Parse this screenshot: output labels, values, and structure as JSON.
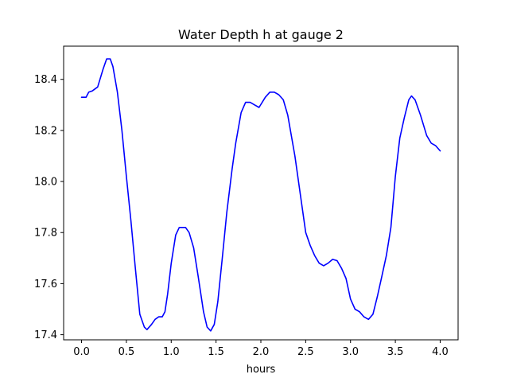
{
  "chart_data": {
    "type": "line",
    "title": "Water Depth h at gauge 2",
    "xlabel": "hours",
    "ylabel": "",
    "xlim": [
      -0.2,
      4.2
    ],
    "ylim": [
      17.38,
      18.53
    ],
    "xticks": [
      0.0,
      0.5,
      1.0,
      1.5,
      2.0,
      2.5,
      3.0,
      3.5,
      4.0
    ],
    "xtick_labels": [
      "0.0",
      "0.5",
      "1.0",
      "1.5",
      "2.0",
      "2.5",
      "3.0",
      "3.5",
      "4.0"
    ],
    "yticks": [
      17.4,
      17.6,
      17.8,
      18.0,
      18.2,
      18.4
    ],
    "ytick_labels": [
      "17.4",
      "17.6",
      "17.8",
      "18.0",
      "18.2",
      "18.4"
    ],
    "grid": false,
    "series": [
      {
        "color": "#0000ff",
        "x": [
          0.0,
          0.05,
          0.08,
          0.12,
          0.18,
          0.24,
          0.28,
          0.32,
          0.35,
          0.4,
          0.45,
          0.5,
          0.55,
          0.6,
          0.65,
          0.7,
          0.73,
          0.78,
          0.82,
          0.86,
          0.9,
          0.93,
          0.96,
          1.0,
          1.05,
          1.09,
          1.12,
          1.16,
          1.2,
          1.25,
          1.3,
          1.36,
          1.4,
          1.44,
          1.48,
          1.52,
          1.57,
          1.62,
          1.68,
          1.72,
          1.78,
          1.83,
          1.88,
          1.93,
          1.98,
          2.05,
          2.1,
          2.15,
          2.2,
          2.25,
          2.3,
          2.38,
          2.44,
          2.5,
          2.55,
          2.6,
          2.65,
          2.7,
          2.75,
          2.8,
          2.85,
          2.9,
          2.95,
          3.0,
          3.05,
          3.1,
          3.15,
          3.2,
          3.25,
          3.3,
          3.35,
          3.4,
          3.45,
          3.5,
          3.55,
          3.6,
          3.65,
          3.68,
          3.72,
          3.78,
          3.85,
          3.9,
          3.95,
          4.0
        ],
        "y": [
          18.33,
          18.33,
          18.35,
          18.355,
          18.37,
          18.44,
          18.48,
          18.48,
          18.45,
          18.35,
          18.2,
          18.02,
          17.85,
          17.66,
          17.48,
          17.43,
          17.42,
          17.44,
          17.46,
          17.47,
          17.47,
          17.49,
          17.56,
          17.68,
          17.79,
          17.82,
          17.82,
          17.82,
          17.8,
          17.74,
          17.63,
          17.49,
          17.43,
          17.415,
          17.44,
          17.53,
          17.7,
          17.88,
          18.05,
          18.15,
          18.27,
          18.31,
          18.31,
          18.3,
          18.29,
          18.33,
          18.35,
          18.35,
          18.34,
          18.32,
          18.26,
          18.1,
          17.95,
          17.8,
          17.75,
          17.71,
          17.68,
          17.67,
          17.68,
          17.695,
          17.69,
          17.66,
          17.62,
          17.54,
          17.5,
          17.49,
          17.47,
          17.46,
          17.48,
          17.55,
          17.63,
          17.71,
          17.82,
          18.02,
          18.17,
          18.25,
          18.32,
          18.335,
          18.32,
          18.26,
          18.18,
          18.15,
          18.14,
          18.12
        ]
      }
    ]
  }
}
